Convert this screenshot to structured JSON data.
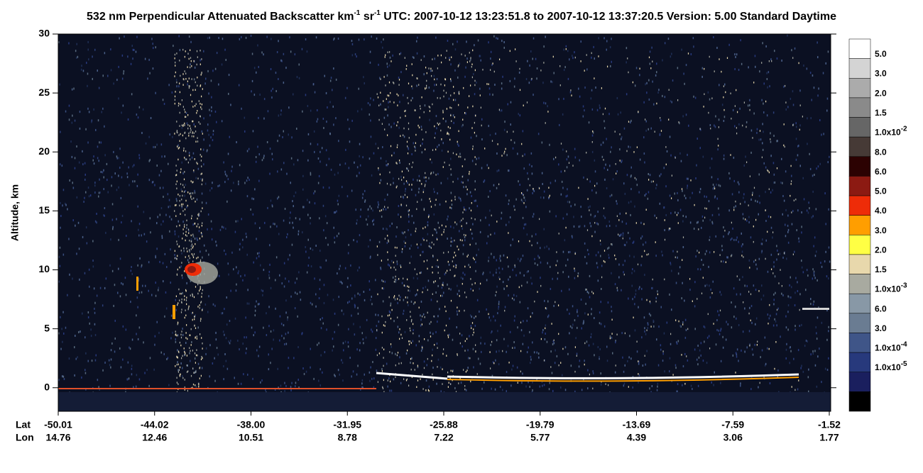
{
  "chart_data": {
    "type": "heatmap",
    "title_parts": [
      {
        "text": "532 nm Perpendicular Attenuated Backscatter km"
      },
      {
        "sup": "-1"
      },
      {
        "text": " sr"
      },
      {
        "sup": "-1"
      },
      {
        "text": "  UTC: 2007-10-12 13:23:51.8 to 2007-10-12 13:37:20.5  Version: 5.00 Standard Daytime"
      }
    ],
    "y_label": "Altitude, km",
    "ylim": [
      -2,
      30
    ],
    "yticks": [
      0,
      5,
      10,
      15,
      20,
      25,
      30
    ],
    "x_rows": [
      {
        "name": "Lat",
        "labels": [
          "-50.01",
          "-44.02",
          "-38.00",
          "-31.95",
          "-25.88",
          "-19.79",
          "-13.69",
          "-7.59",
          "-1.52"
        ]
      },
      {
        "name": "Lon",
        "labels": [
          "14.76",
          "12.46",
          "10.51",
          "8.78",
          "7.22",
          "5.77",
          "4.39",
          "3.06",
          "1.77"
        ]
      }
    ],
    "colorbar": {
      "colors": [
        "#ffffff",
        "#d4d4d4",
        "#ababab",
        "#8a8a8a",
        "#666666",
        "#463a36",
        "#2c0202",
        "#8c1a12",
        "#ee2c08",
        "#ff9e00",
        "#ffff44",
        "#e8d8ac",
        "#a8aaa0",
        "#8898a6",
        "#6a7c92",
        "#3f5588",
        "#27397c",
        "#1a1f5e",
        "#000000"
      ],
      "labels": [
        {
          "base": "5.0"
        },
        {
          "base": "3.0"
        },
        {
          "base": "2.0"
        },
        {
          "base": "1.5"
        },
        {
          "base": "1.0x10",
          "sup": "-2"
        },
        {
          "base": "8.0"
        },
        {
          "base": "6.0"
        },
        {
          "base": "5.0"
        },
        {
          "base": "4.0"
        },
        {
          "base": "3.0"
        },
        {
          "base": "2.0"
        },
        {
          "base": "1.5"
        },
        {
          "base": "1.0x10",
          "sup": "-3"
        },
        {
          "base": "6.0"
        },
        {
          "base": "3.0"
        },
        {
          "base": "1.0x10",
          "sup": "-4"
        },
        {
          "base": "1.0x10",
          "sup": "-5"
        }
      ]
    }
  }
}
